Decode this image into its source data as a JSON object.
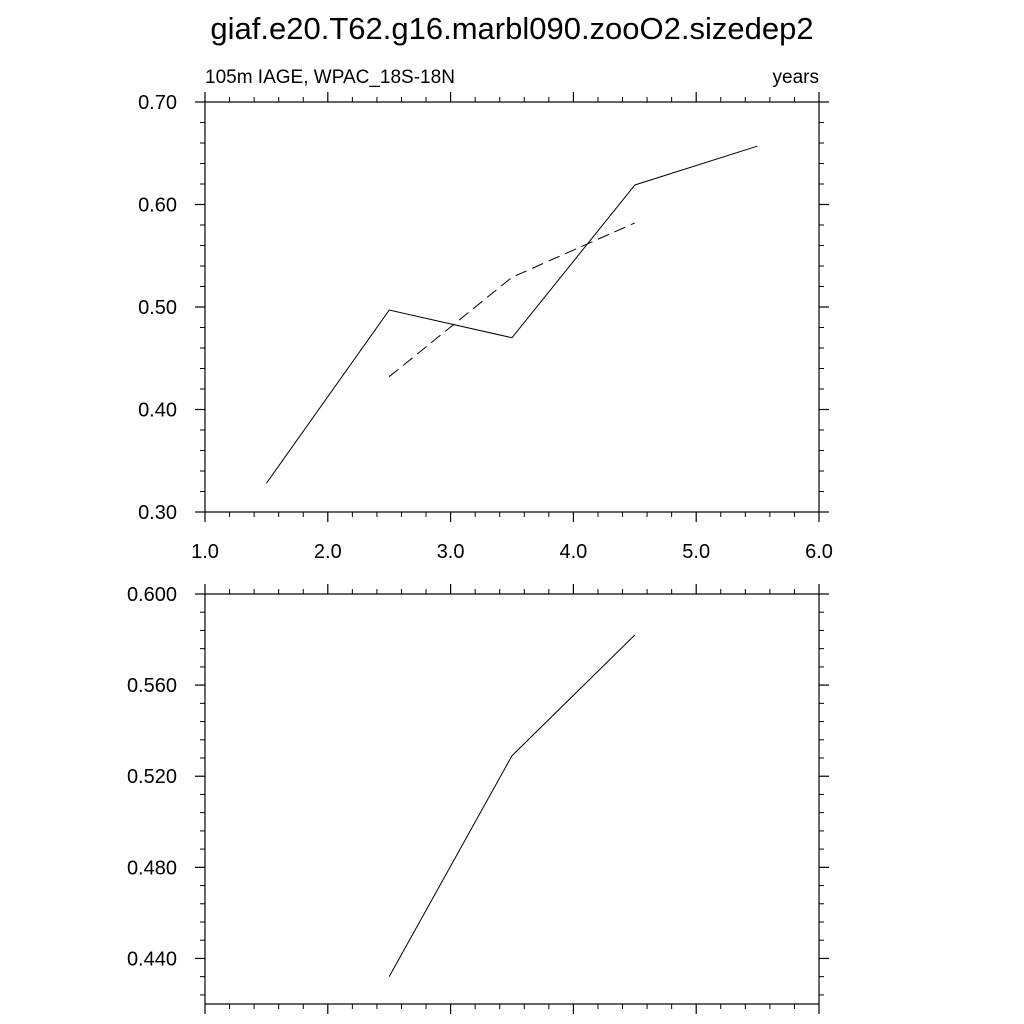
{
  "title": "giaf.e20.T62.g16.marbl090.zooO2.sizedep2",
  "chart_data": [
    {
      "type": "line",
      "title": "",
      "subtitle_left": "105m IAGE, WPAC_18S-18N",
      "subtitle_right": "years",
      "xlabel": "",
      "ylabel": "",
      "xlim": [
        1.0,
        6.0
      ],
      "ylim": [
        0.3,
        0.7
      ],
      "x_ticks": [
        1.0,
        2.0,
        3.0,
        4.0,
        5.0,
        6.0
      ],
      "x_tick_labels": [
        "1.0",
        "2.0",
        "3.0",
        "4.0",
        "5.0",
        "6.0"
      ],
      "y_ticks": [
        0.3,
        0.4,
        0.5,
        0.6,
        0.7
      ],
      "y_tick_labels": [
        "0.30",
        "0.40",
        "0.50",
        "0.60",
        "0.70"
      ],
      "grid": false,
      "legend": "none",
      "series": [
        {
          "style": "solid",
          "color": "#000000",
          "x": [
            1.5,
            2.5,
            3.5,
            4.5,
            5.5
          ],
          "y": [
            0.328,
            0.497,
            0.47,
            0.619,
            0.657
          ]
        },
        {
          "style": "dashed",
          "color": "#000000",
          "x": [
            2.5,
            3.5,
            4.5
          ],
          "y": [
            0.432,
            0.529,
            0.582
          ]
        }
      ]
    },
    {
      "type": "line",
      "title": "",
      "xlabel": "",
      "ylabel": "",
      "xlim": [
        1.0,
        6.0
      ],
      "ylim": [
        0.42,
        0.6
      ],
      "x_ticks": [
        1.0,
        2.0,
        3.0,
        4.0,
        5.0,
        6.0
      ],
      "x_tick_labels": [],
      "y_ticks": [
        0.44,
        0.48,
        0.52,
        0.56,
        0.6
      ],
      "y_tick_labels": [
        "0.440",
        "0.480",
        "0.520",
        "0.560",
        "0.600"
      ],
      "grid": false,
      "legend": "none",
      "series": [
        {
          "style": "solid",
          "color": "#000000",
          "x": [
            2.5,
            3.5,
            4.5
          ],
          "y": [
            0.432,
            0.529,
            0.582
          ]
        }
      ]
    }
  ]
}
